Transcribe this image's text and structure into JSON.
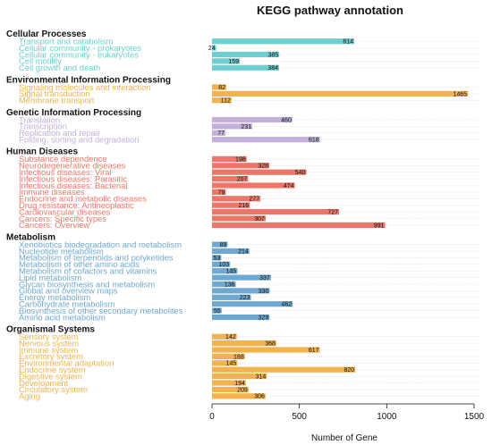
{
  "chart_data": {
    "type": "bar",
    "orientation": "horizontal",
    "title": "KEGG pathway annotation",
    "xlabel": "Number of Gene",
    "xlim": [
      0,
      1500
    ],
    "xticks": [
      0,
      500,
      1000,
      1500
    ],
    "grid": "dotted horizontal guides per category",
    "legend": "none",
    "groups": [
      {
        "name": "Cellular Processes",
        "color": "#6dcfcf",
        "items": [
          {
            "label": "Transport and catabolism",
            "value": 814
          },
          {
            "label": "Cellular community - prokaryotes",
            "value": 24
          },
          {
            "label": "Cellular community - eukaryotes",
            "value": 385
          },
          {
            "label": "Cell motility",
            "value": 159
          },
          {
            "label": "Cell growth and death",
            "value": 384
          }
        ]
      },
      {
        "name": "Environmental Information Processing",
        "color": "#f2b24e",
        "items": [
          {
            "label": "Signaling molecules and interaction",
            "value": 82
          },
          {
            "label": "Signal transduction",
            "value": 1465
          },
          {
            "label": "Membrane transport",
            "value": 112
          }
        ]
      },
      {
        "name": "Genetic Information Processing",
        "color": "#c2b0da",
        "items": [
          {
            "label": "Translation",
            "value": 460
          },
          {
            "label": "Transcription",
            "value": 231
          },
          {
            "label": "Replication and repair",
            "value": 77
          },
          {
            "label": "Folding, sorting and degradation",
            "value": 618
          }
        ]
      },
      {
        "name": "Human Diseases",
        "color": "#ec7668",
        "items": [
          {
            "label": "Substance dependence",
            "value": 198
          },
          {
            "label": "Neurodegenerative diseases",
            "value": 328
          },
          {
            "label": "Infectious diseases: Viral",
            "value": 540
          },
          {
            "label": "Infectious diseases: Parasitic",
            "value": 207
          },
          {
            "label": "Infectious diseases: Bacterial",
            "value": 474
          },
          {
            "label": "Immune diseases",
            "value": 79
          },
          {
            "label": "Endocrine and metabolic diseases",
            "value": 277
          },
          {
            "label": "Drug resistance: Antineoplastic",
            "value": 216
          },
          {
            "label": "Cardiovascular diseases",
            "value": 727
          },
          {
            "label": "Cancers: Specific types",
            "value": 307
          },
          {
            "label": "Cancers: Overview",
            "value": 991
          }
        ]
      },
      {
        "name": "Metabolism",
        "color": "#6fa8d0",
        "items": [
          {
            "label": "Xenobiotics biodegradation and metabolism",
            "value": 89
          },
          {
            "label": "Nucleotide metabolism",
            "value": 214
          },
          {
            "label": "Metabolism of terpenoids and polyketides",
            "value": 53
          },
          {
            "label": "Metabolism of other amino acids",
            "value": 103
          },
          {
            "label": "Metabolism of cofactors and vitamins",
            "value": 145
          },
          {
            "label": "Lipid metabolism",
            "value": 337
          },
          {
            "label": "Glycan biosynthesis and metabolism",
            "value": 136
          },
          {
            "label": "Global and overview maps",
            "value": 330
          },
          {
            "label": "Energy metabolism",
            "value": 223
          },
          {
            "label": "Carbohydrate metabolism",
            "value": 462
          },
          {
            "label": "Biosynthesis of other secondary metabolites",
            "value": 55
          },
          {
            "label": "Amino acid metabolism",
            "value": 329
          }
        ]
      },
      {
        "name": "Organismal Systems",
        "color": "#f2b24e",
        "items": [
          {
            "label": "Sensory system",
            "value": 142
          },
          {
            "label": "Nervous system",
            "value": 368
          },
          {
            "label": "Immune system",
            "value": 617
          },
          {
            "label": "Excretory system",
            "value": 188
          },
          {
            "label": "Environmental adaptation",
            "value": 145
          },
          {
            "label": "Endocrine system",
            "value": 820
          },
          {
            "label": "Digestive system",
            "value": 314
          },
          {
            "label": "Development",
            "value": 194
          },
          {
            "label": "Circulatory system",
            "value": 209
          },
          {
            "label": "Aging",
            "value": 306
          }
        ]
      }
    ]
  }
}
